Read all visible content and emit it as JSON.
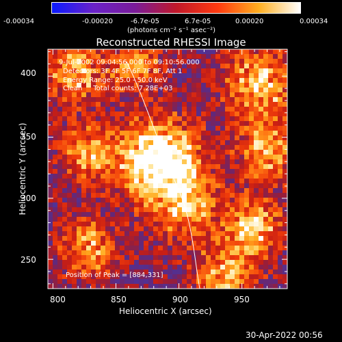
{
  "colorbar": {
    "ticks": [
      "-0.00034",
      "-0.00020",
      "-6.7e-05",
      "6.7e-05",
      "0.00020",
      "0.00034"
    ],
    "units": "(photons cm⁻² s⁻¹ asec⁻²)",
    "colors": [
      "#0a1aff",
      "#6a22c8",
      "#7a1c9a",
      "#c0182a",
      "#ff3a10",
      "#ffae20",
      "#ffffff"
    ]
  },
  "title": "Reconstructed RHESSI Image",
  "info_lines": [
    "9-Jul-2002 09:04:56.000 to 09:10:56.000",
    "Detectors: 3F 4F 5F 6F 7F 8F, Att 1",
    "Energy Range: 25.0 - 50.0 keV",
    "Clean     Total counts: 7.28E+03"
  ],
  "peak_text": "Position of Peak = [884,331]",
  "x_axis": {
    "label": "Heliocentric X (arcsec)",
    "ticks": [
      "800",
      "850",
      "900",
      "950"
    ]
  },
  "y_axis": {
    "label": "Heliocentric Y (arcsec)",
    "ticks": [
      "250",
      "300",
      "350",
      "400"
    ]
  },
  "timestamp": "30-Apr-2022 00:56",
  "image": {
    "x_range": [
      796,
      986
    ],
    "y_range": [
      226,
      422
    ],
    "peak": [
      884,
      331
    ],
    "background_color": "#4a2a8a",
    "limb_color": "#ffffff"
  }
}
